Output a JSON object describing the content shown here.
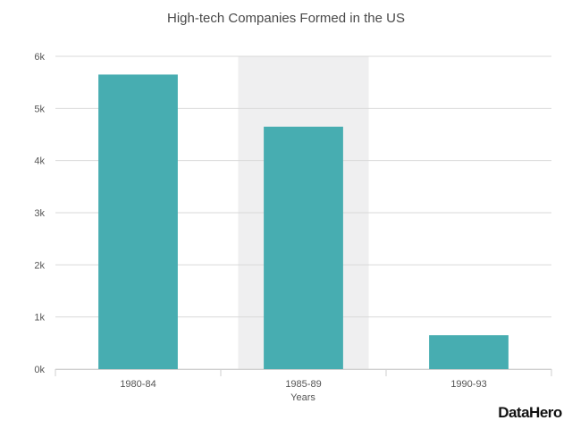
{
  "chart_data": {
    "type": "bar",
    "title": "High-tech Companies Formed in the US",
    "xlabel": "Years",
    "ylabel": "",
    "categories": [
      "1980-84",
      "1985-89",
      "1990-93"
    ],
    "values": [
      5650,
      4650,
      650
    ],
    "ylim": [
      0,
      6000
    ],
    "yticks": [
      0,
      1000,
      2000,
      3000,
      4000,
      5000,
      6000
    ],
    "ytick_labels": [
      "0k",
      "1k",
      "2k",
      "3k",
      "4k",
      "5k",
      "6k"
    ],
    "grid": true,
    "highlighted_category": "1985-89",
    "colors": {
      "bar": "#47adb1",
      "highlight_band": "#efeff0",
      "grid": "#d9d9d9"
    }
  },
  "brand": {
    "logo_text": "DataHero"
  }
}
